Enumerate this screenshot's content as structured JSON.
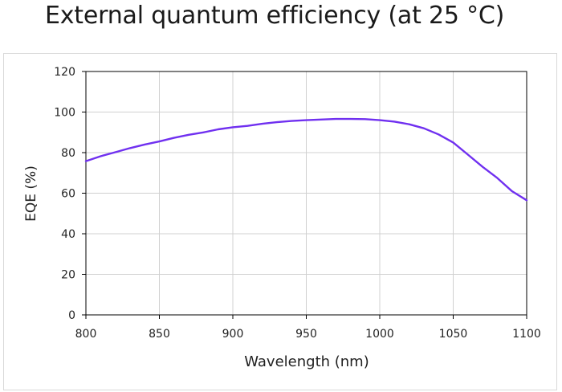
{
  "page": {
    "title": "External quantum efficiency (at 25 °C)"
  },
  "chart_data": {
    "type": "line",
    "title": "External quantum efficiency (at 25 °C)",
    "xlabel": "Wavelength (nm)",
    "ylabel": "EQE (%)",
    "xlim": [
      800,
      1100
    ],
    "ylim": [
      0,
      120
    ],
    "x_ticks": [
      800,
      850,
      900,
      950,
      1000,
      1050,
      1100
    ],
    "y_ticks": [
      0,
      20,
      40,
      60,
      80,
      100,
      120
    ],
    "grid": true,
    "legend": "none",
    "series": [
      {
        "color": "#7030f0",
        "x": [
          800,
          810,
          820,
          830,
          840,
          850,
          860,
          870,
          880,
          890,
          900,
          910,
          920,
          930,
          940,
          950,
          960,
          970,
          980,
          990,
          1000,
          1010,
          1020,
          1030,
          1040,
          1050,
          1060,
          1070,
          1080,
          1090,
          1100
        ],
        "y": [
          75.8,
          78.2,
          80.2,
          82.2,
          84.0,
          85.5,
          87.3,
          88.8,
          90.0,
          91.5,
          92.5,
          93.2,
          94.2,
          95.0,
          95.6,
          96.0,
          96.3,
          96.6,
          96.6,
          96.5,
          96.0,
          95.3,
          94.0,
          92.0,
          89.0,
          85.0,
          79.0,
          73.0,
          67.5,
          61.0,
          56.5
        ]
      }
    ]
  }
}
